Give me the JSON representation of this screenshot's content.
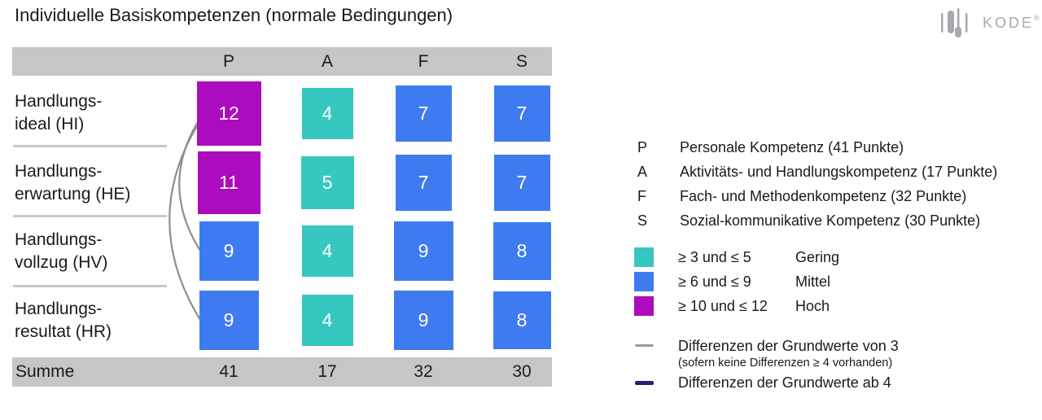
{
  "title": "Individuelle Basiskompetenzen (normale Bedingungen)",
  "logo": {
    "brand": "KODE",
    "mark": "®"
  },
  "table": {
    "columns": [
      "P",
      "A",
      "F",
      "S"
    ],
    "rows": [
      {
        "line1": "Handlungs-",
        "line2": "ideal (HI)"
      },
      {
        "line1": "Handlungs-",
        "line2": "erwartung (HE)"
      },
      {
        "line1": "Handlungs-",
        "line2": "vollzug (HV)"
      },
      {
        "line1": "Handlungs-",
        "line2": "resultat (HR)"
      }
    ],
    "values": [
      [
        12,
        4,
        7,
        7
      ],
      [
        11,
        5,
        7,
        7
      ],
      [
        9,
        4,
        9,
        8
      ],
      [
        9,
        4,
        9,
        8
      ]
    ],
    "summe_label": "Summe",
    "sums": [
      "41",
      "17",
      "32",
      "30"
    ]
  },
  "legend": {
    "competences": [
      {
        "key": "P",
        "text": "Personale Kompetenz (41 Punkte)"
      },
      {
        "key": "A",
        "text": "Aktivitäts- und Handlungskompetenz (17 Punkte)"
      },
      {
        "key": "F",
        "text": "Fach- und Methodenkompetenz (32 Punkte)"
      },
      {
        "key": "S",
        "text": "Sozial-kommunikative Kompetenz (30 Punkte)"
      }
    ],
    "bins": [
      {
        "min": 3,
        "max": 5,
        "range": "≥ 3 und ≤ 5",
        "label": "Gering",
        "color": "#35C7C0"
      },
      {
        "min": 6,
        "max": 9,
        "range": "≥ 6 und ≤ 9",
        "label": "Mittel",
        "color": "#3E7BF0"
      },
      {
        "min": 10,
        "max": 12,
        "range": "≥ 10 und ≤ 12",
        "label": "Hoch",
        "color": "#AC0BBE"
      }
    ],
    "differences": [
      {
        "text": "Differenzen der Grundwerte von 3",
        "sub": "(sofern keine Differenzen ≥ 4 vorhanden)",
        "color": "#9B9B9B"
      },
      {
        "text": "Differenzen der Grundwerte ab 4",
        "sub": "",
        "color": "#2E1B6E"
      }
    ]
  },
  "colors": {
    "bar_gray": "#C6C6C6",
    "divider": "#C9C9C9",
    "ink": "#1A1A1A",
    "logo_gray": "#A8A8AF",
    "cell_text": "#FFFFFF",
    "diff3_arc": "#8F8F8F",
    "diff4_line": "#2E1B6E"
  },
  "chart_data": {
    "type": "heatmap",
    "title": "Individuelle Basiskompetenzen (normale Bedingungen)",
    "columns": [
      "P",
      "A",
      "F",
      "S"
    ],
    "column_full_names": [
      "Personale Kompetenz",
      "Aktivitäts- und Handlungskompetenz",
      "Fach- und Methodenkompetenz",
      "Sozial-kommunikative Kompetenz"
    ],
    "rows": [
      "Handlungsideal (HI)",
      "Handlungserwartung (HE)",
      "Handlungsvollzug (HV)",
      "Handlungsresultat (HR)"
    ],
    "values": [
      [
        12,
        4,
        7,
        7
      ],
      [
        11,
        5,
        7,
        7
      ],
      [
        9,
        4,
        9,
        8
      ],
      [
        9,
        4,
        9,
        8
      ]
    ],
    "sums": [
      41,
      17,
      32,
      30
    ],
    "value_bins": [
      {
        "range": [
          3,
          5
        ],
        "label": "Gering",
        "color": "#35C7C0"
      },
      {
        "range": [
          6,
          9
        ],
        "label": "Mittel",
        "color": "#3E7BF0"
      },
      {
        "range": [
          10,
          12
        ],
        "label": "Hoch",
        "color": "#AC0BBE"
      }
    ],
    "difference_links": [
      {
        "column": "P",
        "from_row": "HI",
        "to_row": "HV",
        "difference": 3
      },
      {
        "column": "P",
        "from_row": "HI",
        "to_row": "HR",
        "difference": 3
      }
    ],
    "legend_position": "right",
    "grid": false
  }
}
